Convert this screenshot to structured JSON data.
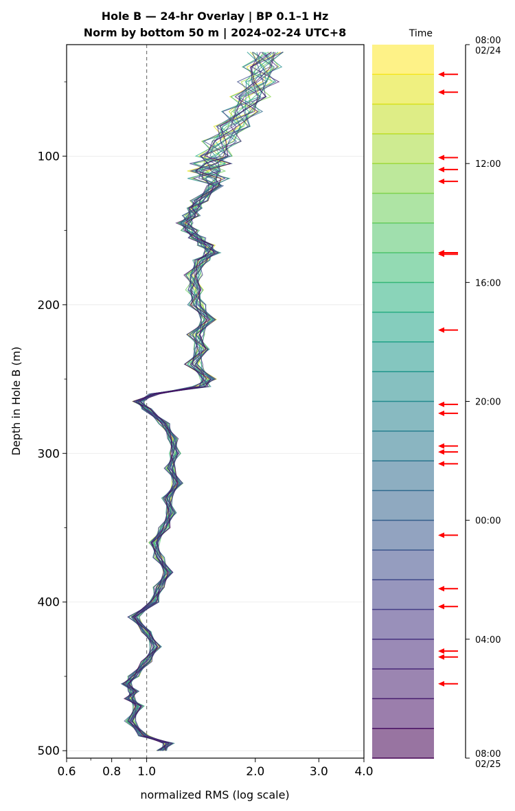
{
  "chart_data": [
    {
      "type": "line",
      "title": "Hole B — 24-hr Overlay  |  BP 0.1–1 Hz",
      "subtitle": "Norm by bottom 50 m  |  2024-02-24 UTC+8",
      "xlabel": "normalized RMS  (log scale)",
      "ylabel": "Depth in Hole B (m)",
      "x_scale": "log",
      "xlim": [
        0.6,
        4.0
      ],
      "ylim": [
        505,
        25
      ],
      "y_inverted": true,
      "x_ticks": [
        0.6,
        0.8,
        1.0,
        2.0,
        3.0,
        4.0
      ],
      "x_tick_labels": [
        "0.6",
        "0.8",
        "1.0",
        "2.0",
        "3.0",
        "4.0"
      ],
      "y_ticks": [
        100,
        200,
        300,
        400,
        500
      ],
      "y_tick_labels": [
        "100",
        "200",
        "300",
        "400",
        "500"
      ],
      "reference_line": {
        "x": 1.0,
        "style": "dashed",
        "color": "#777777"
      },
      "grid": "horizontal",
      "colormap": "viridis",
      "series_count": 24,
      "depth": [
        30,
        40,
        50,
        60,
        70,
        80,
        90,
        100,
        105,
        110,
        115,
        120,
        130,
        135,
        140,
        145,
        150,
        155,
        160,
        165,
        170,
        180,
        190,
        200,
        210,
        220,
        230,
        240,
        250,
        255,
        260,
        265,
        270,
        280,
        290,
        300,
        310,
        320,
        330,
        340,
        350,
        360,
        370,
        380,
        390,
        400,
        410,
        420,
        430,
        440,
        450,
        455,
        460,
        465,
        470,
        480,
        490,
        495,
        500
      ],
      "profile": [
        2.15,
        2.1,
        2.05,
        1.95,
        1.85,
        1.75,
        1.62,
        1.55,
        1.52,
        1.48,
        1.5,
        1.55,
        1.4,
        1.36,
        1.33,
        1.28,
        1.32,
        1.38,
        1.46,
        1.52,
        1.42,
        1.35,
        1.36,
        1.38,
        1.48,
        1.37,
        1.42,
        1.35,
        1.48,
        1.42,
        1.05,
        0.95,
        1.0,
        1.12,
        1.18,
        1.2,
        1.16,
        1.22,
        1.14,
        1.17,
        1.12,
        1.05,
        1.08,
        1.15,
        1.08,
        1.05,
        0.92,
        1.0,
        1.06,
        1.0,
        0.92,
        0.88,
        0.92,
        0.9,
        0.95,
        0.9,
        0.98,
        1.15,
        1.1
      ]
    },
    {
      "type": "colorbar",
      "title": "Time",
      "tick_labels": [
        "08:00\n02/24",
        "12:00",
        "16:00",
        "20:00",
        "00:00",
        "04:00",
        "08:00\n02/25"
      ],
      "bands": 24,
      "colors_top_to_bottom": [
        "#fde725",
        "#e2e418",
        "#c2df23",
        "#a5db36",
        "#86d549",
        "#6ccd5a",
        "#52c569",
        "#3bbb75",
        "#2ab07f",
        "#20a486",
        "#1f988b",
        "#228d8d",
        "#26828e",
        "#2a788e",
        "#2f6c8e",
        "#33638d",
        "#38588c",
        "#3e4c8a",
        "#424086",
        "#453581",
        "#472a7a",
        "#482071",
        "#481467",
        "#440154"
      ],
      "arrows_hours_from_start": [
        1.0,
        1.6,
        3.8,
        4.2,
        4.6,
        7.0,
        7.05,
        9.6,
        12.1,
        12.4,
        13.5,
        13.7,
        14.1,
        16.5,
        18.3,
        18.9,
        20.4,
        20.6,
        21.5
      ]
    }
  ]
}
